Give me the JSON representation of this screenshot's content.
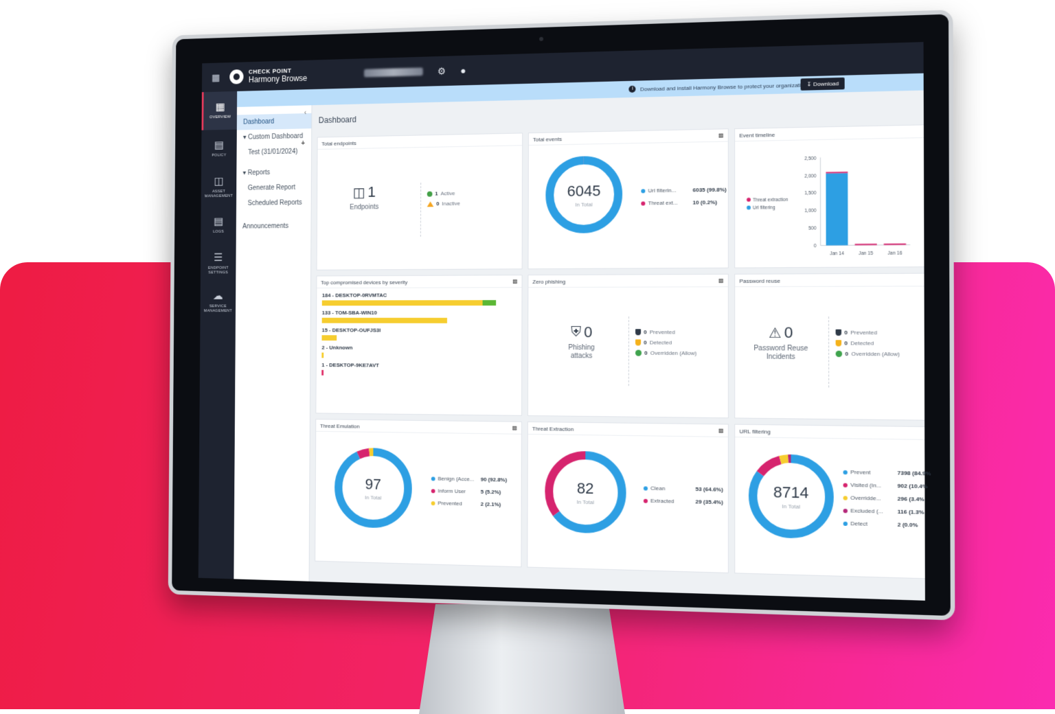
{
  "topbar": {
    "brand_top": "CHECK POINT",
    "brand_bottom": "Harmony Browse"
  },
  "rail": {
    "items": [
      {
        "label": "OVERVIEW",
        "icon": "overview-icon"
      },
      {
        "label": "POLICY",
        "icon": "policy-icon"
      },
      {
        "label": "ASSET MANAGEMENT",
        "icon": "asset-icon"
      },
      {
        "label": "LOGS",
        "icon": "logs-icon"
      },
      {
        "label": "ENDPOINT SETTINGS",
        "icon": "settings-icon"
      },
      {
        "label": "SERVICE MANAGEMENT",
        "icon": "service-icon"
      }
    ]
  },
  "sidebar": {
    "dashboard": "Dashboard",
    "custom_dashboard": "Custom Dashboard",
    "test": "Test (31/01/2024)",
    "reports": "Reports",
    "generate_report": "Generate Report",
    "scheduled_reports": "Scheduled Reports",
    "announcements": "Announcements"
  },
  "banner": {
    "text": "Download and install Harmony Browse to protect your organization",
    "download": "Download"
  },
  "page_title": "Dashboard",
  "total_endpoints": {
    "title": "Total endpoints",
    "count": "1",
    "label": "Endpoints",
    "active_count": "1",
    "active_label": "Active",
    "inactive_count": "0",
    "inactive_label": "Inactive"
  },
  "total_events": {
    "title": "Total events",
    "total": "6045",
    "sub": "In Total",
    "legend": [
      {
        "name": "Url filterin...",
        "value": "6035 (99.8%)",
        "color": "#2d9fe3"
      },
      {
        "name": "Threat ext...",
        "value": "10 (0.2%)",
        "color": "#d6246e"
      }
    ],
    "fractions": [
      0.998,
      0.002
    ]
  },
  "event_timeline": {
    "title": "Event timeline",
    "legend": [
      {
        "name": "Threat extraction",
        "color": "#d6246e"
      },
      {
        "name": "Url filtering",
        "color": "#2d9fe3"
      }
    ],
    "yticks": [
      "2,500",
      "2,000",
      "1,500",
      "1,000",
      "500",
      "0"
    ],
    "xticks": [
      "Jan 14",
      "Jan 15",
      "Jan 16"
    ]
  },
  "top_devices": {
    "title": "Top compromised devices by severity",
    "devices": [
      {
        "label": "184 - DESKTOP-0RVMTAC",
        "yellow": 0.84,
        "green": 0.07,
        "red": 0
      },
      {
        "label": "133 - TOM-SBA-WIN10",
        "yellow": 0.66,
        "green": 0,
        "red": 0
      },
      {
        "label": "15 - DESKTOP-OUFJS3I",
        "yellow": 0.08,
        "green": 0,
        "red": 0
      },
      {
        "label": "2 - Unknown",
        "yellow": 0.01,
        "green": 0,
        "red": 0
      },
      {
        "label": "1 - DESKTOP-9KE7AVT",
        "yellow": 0,
        "green": 0,
        "red": 0.008
      }
    ]
  },
  "zero_phishing": {
    "title": "Zero phishing",
    "count": "0",
    "label": "Phishing attacks",
    "prevented": "0",
    "prevented_label": "Prevented",
    "detected": "0",
    "detected_label": "Detected",
    "overridden": "0",
    "overridden_label": "Overridden (Allow)"
  },
  "password_reuse": {
    "title": "Password reuse",
    "count": "0",
    "label": "Password Reuse Incidents",
    "prevented": "0",
    "prevented_label": "Prevented",
    "detected": "0",
    "detected_label": "Detected",
    "overridden": "0",
    "overridden_label": "Overridden (Allow)"
  },
  "threat_emulation": {
    "title": "Threat Emulation",
    "total": "97",
    "sub": "In Total",
    "legend": [
      {
        "name": "Benign (Acce...",
        "value": "90 (92.8%)",
        "color": "#2d9fe3"
      },
      {
        "name": "Inform User",
        "value": "5 (5.2%)",
        "color": "#d6246e"
      },
      {
        "name": "Prevented",
        "value": "2 (2.1%)",
        "color": "#f6cd2f"
      }
    ],
    "fractions": [
      0.928,
      0.052,
      0.021
    ]
  },
  "threat_extraction": {
    "title": "Threat Extraction",
    "total": "82",
    "sub": "In Total",
    "legend": [
      {
        "name": "Clean",
        "value": "53 (64.6%)",
        "color": "#2d9fe3"
      },
      {
        "name": "Extracted",
        "value": "29 (35.4%)",
        "color": "#d6246e"
      }
    ],
    "fractions": [
      0.646,
      0.354
    ]
  },
  "url_filtering": {
    "title": "URL filtering",
    "total": "8714",
    "sub": "In Total",
    "legend": [
      {
        "name": "Prevent",
        "value": "7398 (84.9%",
        "color": "#2d9fe3"
      },
      {
        "name": "Visited (In...",
        "value": "902 (10.4%",
        "color": "#d6246e"
      },
      {
        "name": "Overridde...",
        "value": "296 (3.4%",
        "color": "#f6cd2f"
      },
      {
        "name": "Excluded (...",
        "value": "116 (1.3%",
        "color": "#b5287a"
      },
      {
        "name": "Detect",
        "value": "2 (0.0%",
        "color": "#2d9fe3"
      }
    ],
    "fractions": [
      0.849,
      0.104,
      0.034,
      0.013,
      0.0
    ]
  }
}
